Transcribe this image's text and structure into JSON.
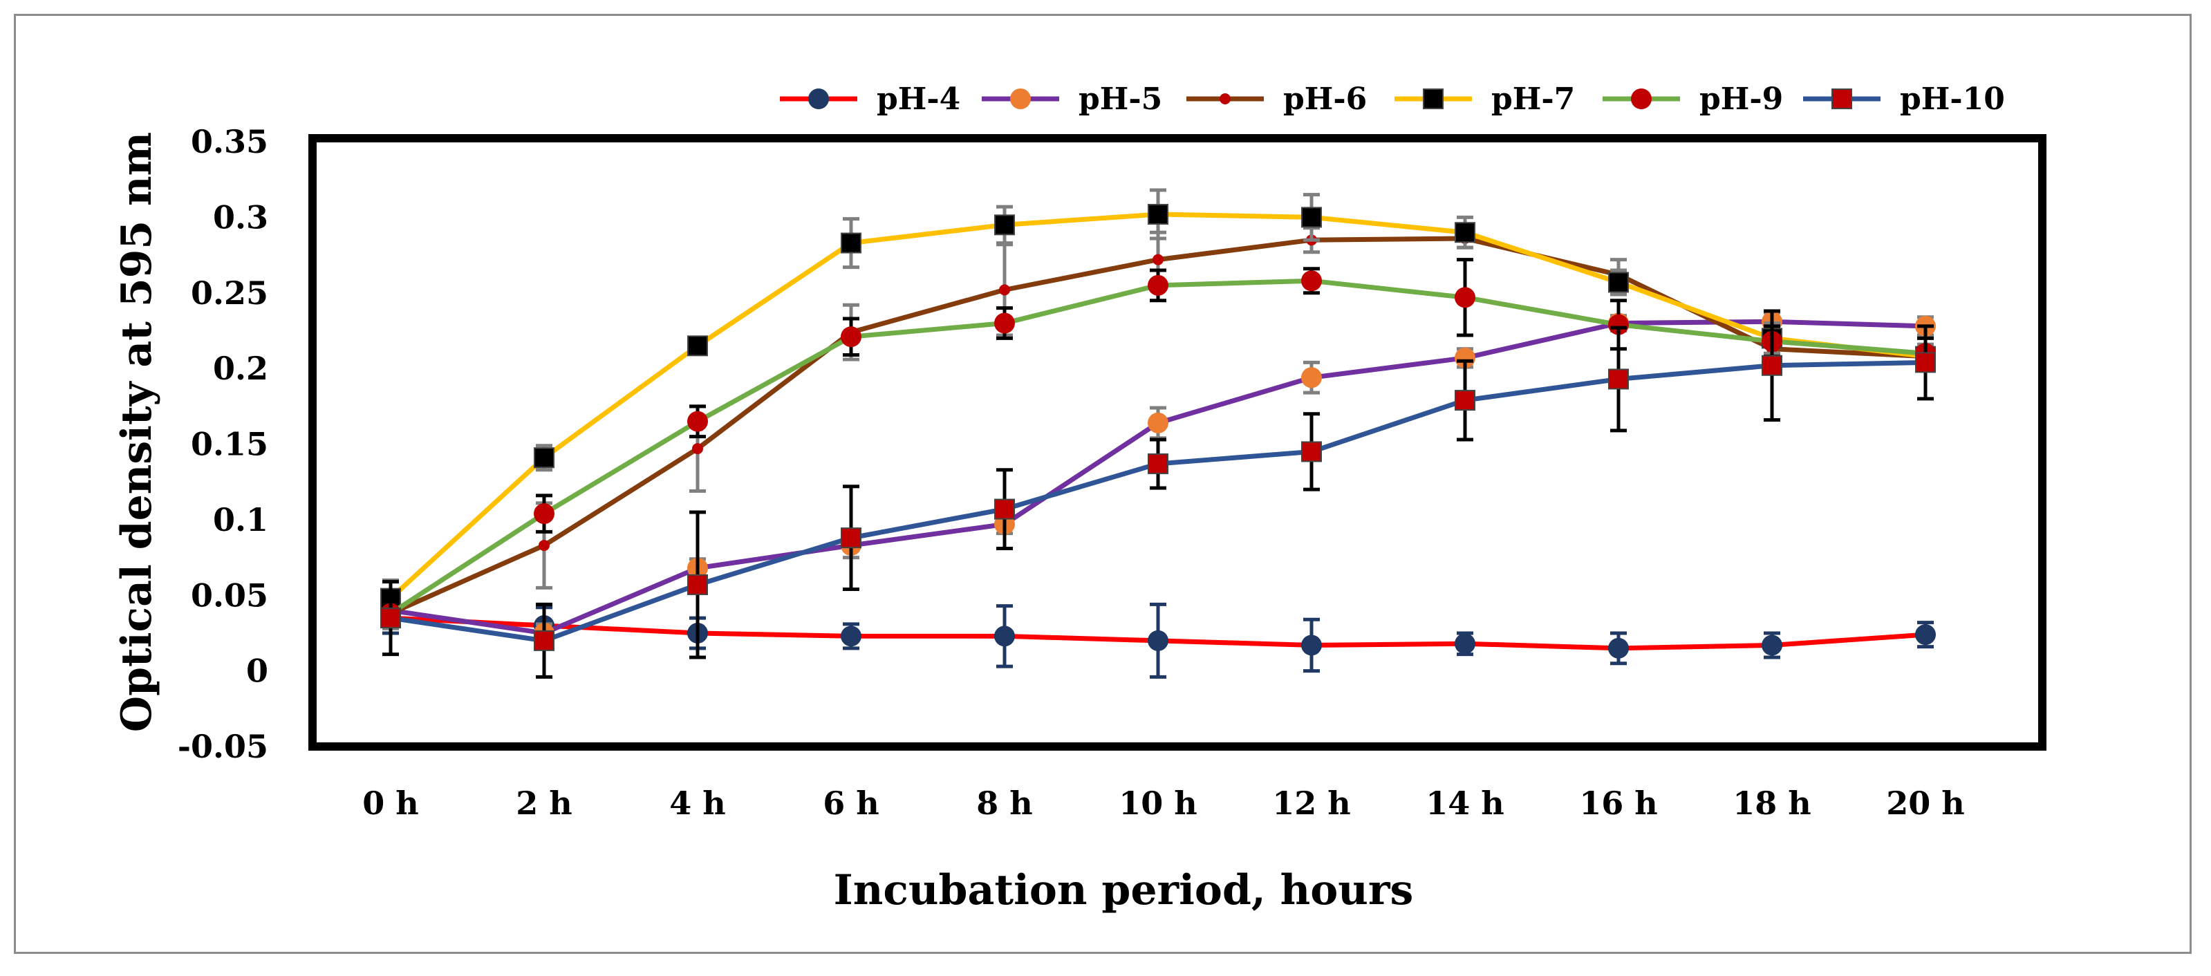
{
  "chart_data": {
    "type": "line",
    "title": "",
    "xlabel": "Incubation period, hours",
    "ylabel": "Optical density at 595 nm",
    "categories": [
      "0 h",
      "2 h",
      "4 h",
      "6 h",
      "8 h",
      "10 h",
      "12 h",
      "14 h",
      "16 h",
      "18 h",
      "20 h"
    ],
    "ylim": [
      -0.05,
      0.35
    ],
    "yticks": [
      -0.05,
      0,
      0.05,
      0.1,
      0.15,
      0.2,
      0.25,
      0.3,
      0.35
    ],
    "ytick_labels": [
      "-0.05",
      "0",
      "0.05",
      "0.1",
      "0.15",
      "0.2",
      "0.25",
      "0.3",
      "0.35"
    ],
    "grid": false,
    "legend_position": "top-right",
    "series": [
      {
        "name": "pH-4",
        "line_color": "#ff0000",
        "marker": "circle",
        "marker_color": "#1f3864",
        "errorbar_color": "#1f3864",
        "values": [
          0.035,
          0.03,
          0.025,
          0.023,
          0.023,
          0.02,
          0.017,
          0.018,
          0.015,
          0.017,
          0.024
        ],
        "errors": [
          0.01,
          0.012,
          0.01,
          0.008,
          0.02,
          0.024,
          0.017,
          0.007,
          0.01,
          0.008,
          0.008
        ]
      },
      {
        "name": "pH-5",
        "line_color": "#7030a0",
        "marker": "circle",
        "marker_color": "#ed7d31",
        "errorbar_color": "#7f7f7f",
        "values": [
          0.04,
          0.025,
          0.068,
          0.083,
          0.097,
          0.164,
          0.194,
          0.207,
          0.23,
          0.231,
          0.228
        ],
        "errors": [
          0.008,
          0.006,
          0.006,
          0.008,
          0.006,
          0.01,
          0.01,
          0.006,
          0.005,
          0.006,
          0.006
        ]
      },
      {
        "name": "pH-6",
        "line_color": "#843c0c",
        "marker": "small-circle",
        "marker_color": "#c00000",
        "errorbar_color": "#7f7f7f",
        "values": [
          0.038,
          0.083,
          0.147,
          0.224,
          0.252,
          0.272,
          0.285,
          0.286,
          0.262,
          0.213,
          0.208
        ],
        "errors": [
          0.01,
          0.028,
          0.028,
          0.018,
          0.03,
          0.018,
          0.008,
          0.006,
          0.01,
          0.01,
          0.006
        ]
      },
      {
        "name": "pH-7",
        "line_color": "#ffc000",
        "marker": "square",
        "marker_color": "#000000",
        "errorbar_color": "#7f7f7f",
        "values": [
          0.048,
          0.141,
          0.215,
          0.283,
          0.295,
          0.302,
          0.3,
          0.29,
          0.257,
          0.22,
          0.208
        ],
        "errors": [
          0.012,
          0.008,
          0.004,
          0.016,
          0.012,
          0.016,
          0.015,
          0.01,
          0.008,
          0.01,
          0.008
        ]
      },
      {
        "name": "pH-9",
        "line_color": "#70ad47",
        "marker": "circle",
        "marker_color": "#c00000",
        "errorbar_color": "#000000",
        "values": [
          0.038,
          0.104,
          0.165,
          0.221,
          0.23,
          0.255,
          0.258,
          0.247,
          0.229,
          0.218,
          0.21
        ],
        "errors": [
          0.008,
          0.012,
          0.01,
          0.012,
          0.01,
          0.01,
          0.008,
          0.025,
          0.016,
          0.01,
          0.01
        ]
      },
      {
        "name": "pH-10",
        "line_color": "#2f5597",
        "marker": "square",
        "marker_color": "#c00000",
        "errorbar_color": "#000000",
        "values": [
          0.035,
          0.02,
          0.057,
          0.088,
          0.107,
          0.137,
          0.145,
          0.179,
          0.193,
          0.202,
          0.204
        ],
        "errors": [
          0.024,
          0.024,
          0.048,
          0.034,
          0.026,
          0.016,
          0.025,
          0.026,
          0.034,
          0.036,
          0.024
        ]
      }
    ]
  }
}
